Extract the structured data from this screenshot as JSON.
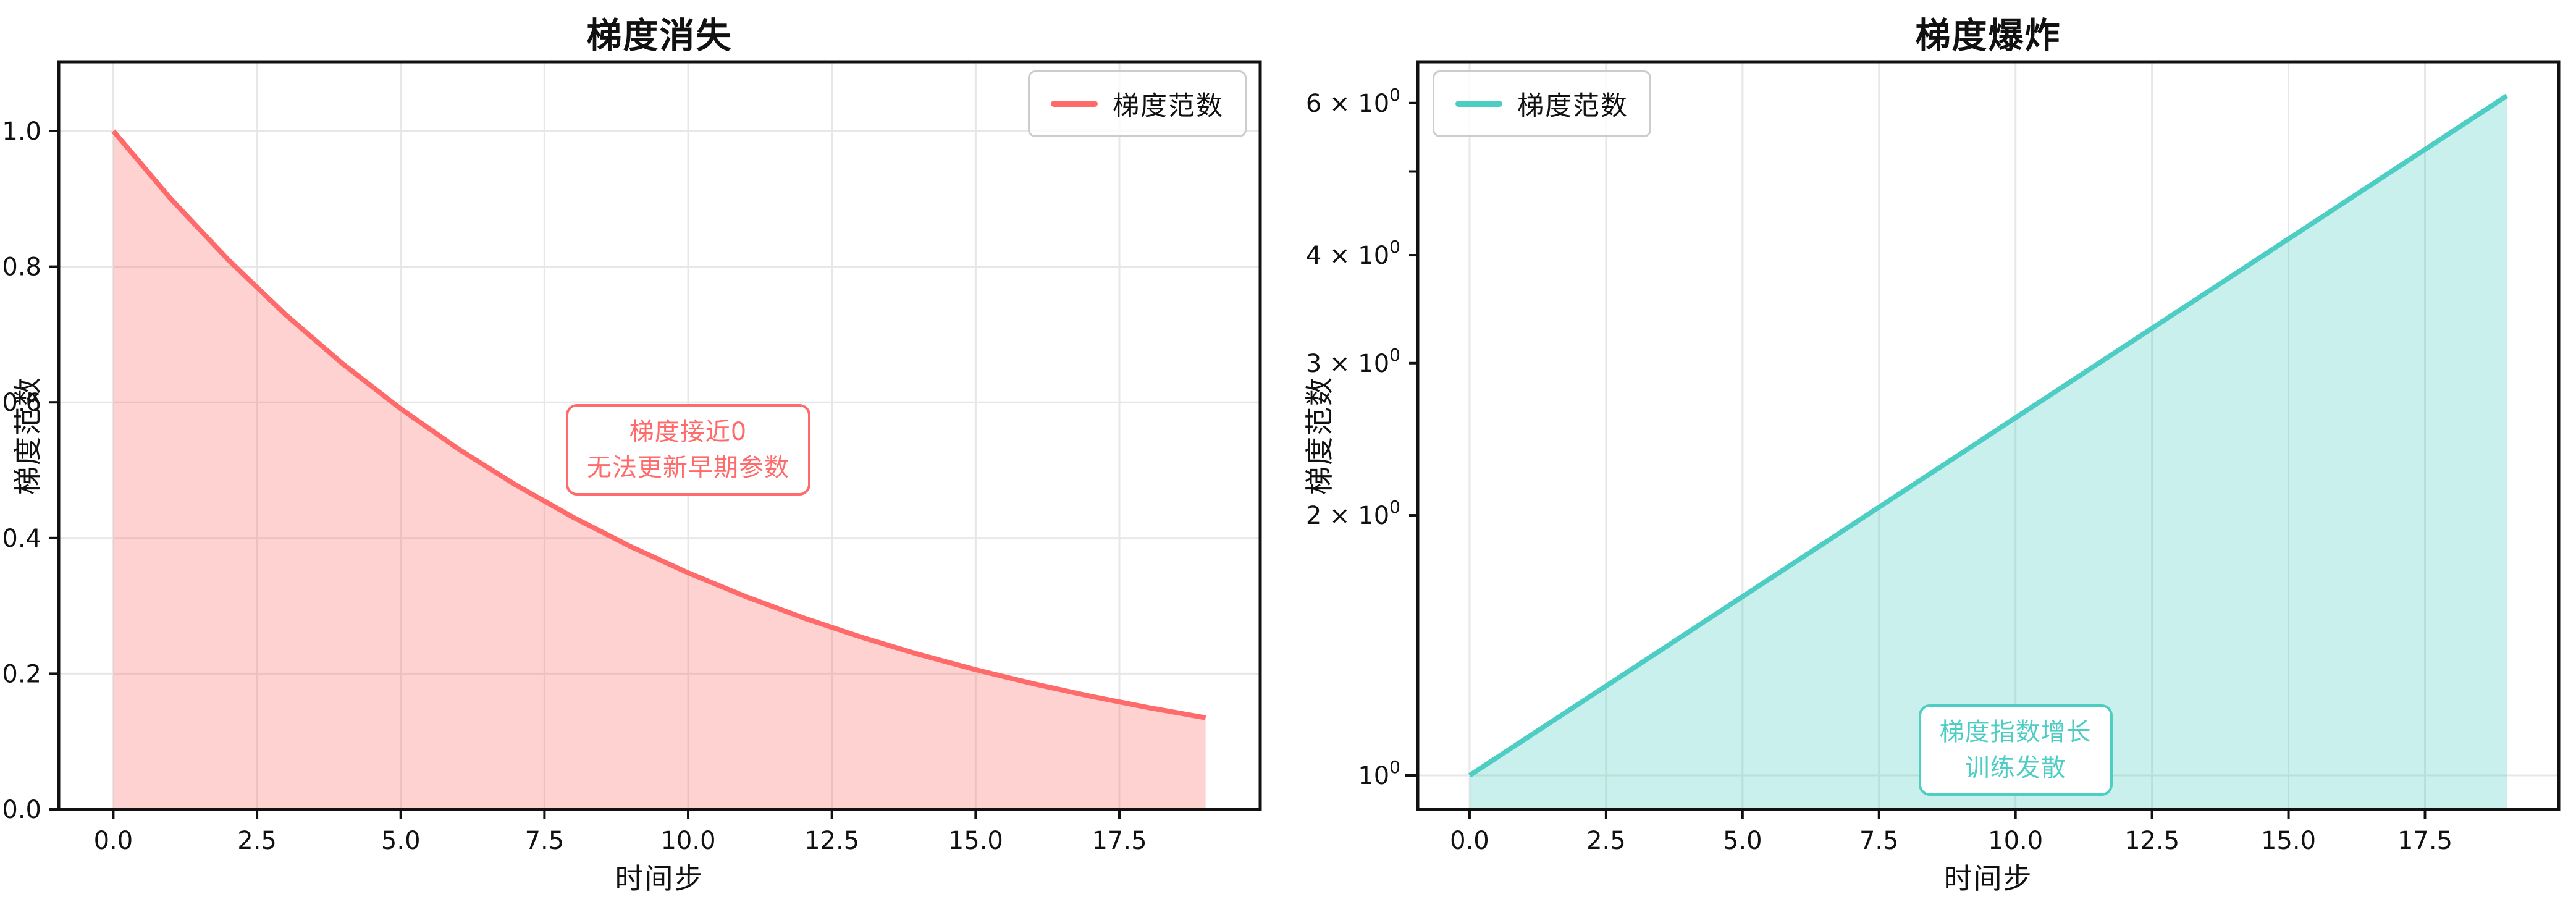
{
  "figure": {
    "background": "#ffffff",
    "grid_color": "#e7e7e7",
    "axis_color": "#111111"
  },
  "chart_data": [
    {
      "type": "area",
      "title": "梯度消失",
      "xlabel": "时间步",
      "ylabel": "梯度范数",
      "legend": {
        "label": "梯度范数",
        "position": "top-right"
      },
      "series_color": "#FF6B6B",
      "fill_alpha": 0.3,
      "yscale": "linear",
      "xlim": [
        -0.95,
        19.95
      ],
      "ylim": [
        0,
        1.102
      ],
      "x": [
        0,
        1,
        2,
        3,
        4,
        5,
        6,
        7,
        8,
        9,
        10,
        11,
        12,
        13,
        14,
        15,
        16,
        17,
        18,
        19
      ],
      "y": [
        1.0,
        0.9,
        0.81,
        0.729,
        0.6561,
        0.5905,
        0.5314,
        0.4783,
        0.4305,
        0.3874,
        0.3487,
        0.3138,
        0.2824,
        0.2542,
        0.2288,
        0.2059,
        0.1853,
        0.1668,
        0.1501,
        0.1351
      ],
      "xticks": {
        "values": [
          0,
          2.5,
          5,
          7.5,
          10,
          12.5,
          15,
          17.5
        ],
        "labels": [
          "0.0",
          "2.5",
          "5.0",
          "7.5",
          "10.0",
          "12.5",
          "15.0",
          "17.5"
        ]
      },
      "yticks": {
        "values": [
          0,
          0.2,
          0.4,
          0.6,
          0.8,
          1.0
        ],
        "labels": [
          "0.0",
          "0.2",
          "0.4",
          "0.6",
          "0.8",
          "1.0"
        ]
      },
      "grid": {
        "vertical": true,
        "horizontal_values": [
          0.2,
          0.4,
          0.6,
          0.8,
          1.0
        ]
      },
      "annotation": {
        "lines": [
          "梯度接近0",
          "无法更新早期参数"
        ],
        "x": 10,
        "y": 0.53
      }
    },
    {
      "type": "area",
      "title": "梯度爆炸",
      "xlabel": "时间步",
      "ylabel": "梯度范数",
      "legend": {
        "label": "梯度范数",
        "position": "top-left"
      },
      "series_color": "#4ECDC4",
      "fill_alpha": 0.3,
      "yscale": "log",
      "xlim": [
        -0.95,
        19.95
      ],
      "ylim": [
        0.9135,
        6.697
      ],
      "x": [
        0,
        1,
        2,
        3,
        4,
        5,
        6,
        7,
        8,
        9,
        10,
        11,
        12,
        13,
        14,
        15,
        16,
        17,
        18,
        19
      ],
      "y": [
        1.0,
        1.1,
        1.21,
        1.331,
        1.4641,
        1.6105,
        1.7716,
        1.9487,
        2.1436,
        2.3579,
        2.5937,
        2.8531,
        3.1384,
        3.4523,
        3.7975,
        4.1772,
        4.595,
        5.0545,
        5.5599,
        6.1159
      ],
      "xticks": {
        "values": [
          0,
          2.5,
          5,
          7.5,
          10,
          12.5,
          15,
          17.5
        ],
        "labels": [
          "0.0",
          "2.5",
          "5.0",
          "7.5",
          "10.0",
          "12.5",
          "15.0",
          "17.5"
        ]
      },
      "yticks_log": [
        {
          "value": 1,
          "prefix": "",
          "base": "10",
          "exp": "0",
          "labeled": true,
          "major": true
        },
        {
          "value": 2,
          "prefix": "2 × ",
          "base": "10",
          "exp": "0",
          "labeled": true,
          "major": false
        },
        {
          "value": 3,
          "prefix": "3 × ",
          "base": "10",
          "exp": "0",
          "labeled": true,
          "major": false
        },
        {
          "value": 4,
          "prefix": "4 × ",
          "base": "10",
          "exp": "0",
          "labeled": true,
          "major": false
        },
        {
          "value": 5,
          "prefix": "",
          "base": "",
          "exp": "",
          "labeled": false,
          "major": false
        },
        {
          "value": 6,
          "prefix": "6 × ",
          "base": "10",
          "exp": "0",
          "labeled": true,
          "major": false
        }
      ],
      "grid": {
        "vertical": true,
        "horizontal_values": [
          1
        ]
      },
      "annotation": {
        "lines": [
          "梯度指数增长",
          "训练发散"
        ],
        "x": 10,
        "y": 1.07
      }
    }
  ]
}
